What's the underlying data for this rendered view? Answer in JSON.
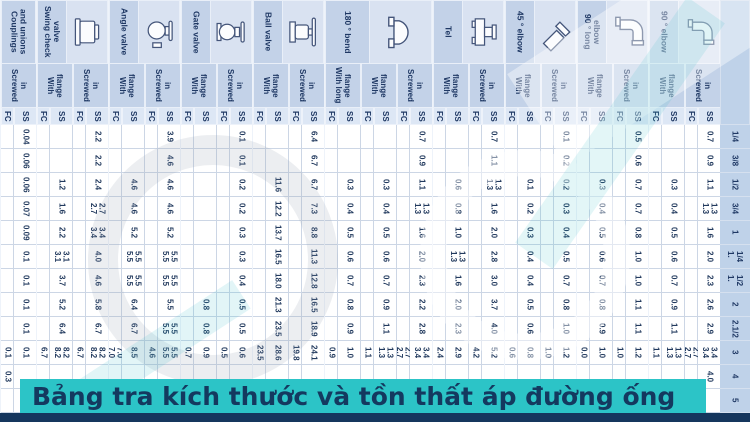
{
  "banner": {
    "text": "Bảng tra kích thước và tồn thất áp đường ống"
  },
  "colors": {
    "banner_bg": "#2cc4c7",
    "banner_text": "#14395f",
    "bottom_strip": "#15365d",
    "header_blue": "#c3d2e8",
    "size_column_blue": "#bfd2e9"
  },
  "col_labels": {
    "fc": "FC",
    "ss": "SS"
  },
  "sizes": [
    "1/4",
    "3/8",
    "1/2",
    "3/4",
    "1",
    "1.\n1/4",
    "1.\n1/2",
    "2",
    "2.1/2",
    "3",
    "4",
    "5"
  ],
  "groups": [
    {
      "name": "Couplings\nand unions",
      "icon": "",
      "subs": [
        {
          "label": "Screwed\nin",
          "fc": [
            "",
            "",
            "",
            "",
            "",
            "",
            "",
            "",
            "",
            "0.1",
            "0.3",
            ""
          ],
          "ss": [
            "0.04",
            "0.06",
            "0.06",
            "0.07",
            "0.09",
            "0.1",
            "0.1",
            "0.1",
            "0.1",
            "0.1",
            "",
            ""
          ]
        }
      ]
    },
    {
      "name": "Swing check\nvalve",
      "icon": "swing-check-valve",
      "subs": [
        {
          "label": "With\nflange",
          "fc": [
            "",
            "",
            "",
            "",
            "",
            "",
            "",
            "",
            "",
            "6.7",
            "",
            ""
          ],
          "ss": [
            "",
            "",
            "1.2",
            "1.6",
            "2.2",
            "3.1\n3.1",
            "3.7",
            "5.2",
            "6.4",
            "8.2\n8.2",
            "",
            ""
          ]
        },
        {
          "label": "Screwed\nin",
          "fc": [
            "",
            "",
            "",
            "",
            "",
            "",
            "",
            "",
            "",
            "6.7",
            "",
            ""
          ],
          "ss": [
            "2.2",
            "2.2",
            "2.4",
            "2.7\n2.7",
            "3.4\n3.4",
            "4.0",
            "4.6",
            "5.8",
            "6.7",
            "8.2\n8.2",
            "",
            ""
          ]
        }
      ]
    },
    {
      "name": "Angle valve",
      "icon": "angle-valve",
      "subs": [
        {
          "label": "With\nflange",
          "fc": [
            "",
            "",
            "",
            "",
            "",
            "",
            "",
            "",
            "",
            "7.0\n7.0",
            "",
            ""
          ],
          "ss": [
            "",
            "",
            "4.6",
            "4.6",
            "5.2",
            "5.5\n5.5",
            "5.5\n5.5",
            "6.4",
            "6.7",
            "8.5",
            "",
            ""
          ]
        },
        {
          "label": "Screwed\nin",
          "fc": [
            "",
            "",
            "",
            "",
            "",
            "",
            "",
            "",
            "",
            "4.6",
            "",
            ""
          ],
          "ss": [
            "3.9",
            "4.6",
            "4.6",
            "4.6",
            "5.2",
            "5.5\n5.5",
            "5.5\n5.5",
            "5.5",
            "5.5\n5.5",
            "5.5\n5.5",
            "",
            ""
          ]
        }
      ]
    },
    {
      "name": "Gate valve",
      "icon": "gate-valve",
      "subs": [
        {
          "label": "With\nflange",
          "fc": [
            "",
            "",
            "",
            "",
            "",
            "",
            "",
            "",
            "",
            "0.7",
            "",
            ""
          ],
          "ss": [
            "",
            "",
            "",
            "",
            "",
            "",
            "",
            "0.8",
            "0.8",
            "0.9",
            "",
            ""
          ]
        },
        {
          "label": "Screwed\nin",
          "fc": [
            "",
            "",
            "",
            "",
            "",
            "",
            "",
            "",
            "",
            "0.5",
            "",
            ""
          ],
          "ss": [
            "0.1",
            "0.1",
            "0.2",
            "0.2",
            "0.3",
            "0.3",
            "0.4",
            "0.5",
            "0.5",
            "0.6",
            "",
            ""
          ]
        }
      ]
    },
    {
      "name": "Ball valve",
      "icon": "ball-valve",
      "subs": [
        {
          "label": "With\nflange",
          "fc": [
            "",
            "",
            "",
            "",
            "",
            "",
            "",
            "",
            "",
            "23.5",
            "",
            ""
          ],
          "ss": [
            "",
            "",
            "11.6",
            "12.2",
            "13.7",
            "16.5",
            "18.0",
            "21.3",
            "23.5",
            "28.6",
            "",
            ""
          ]
        },
        {
          "label": "Screwed\nin",
          "fc": [
            "",
            "",
            "",
            "",
            "",
            "",
            "",
            "",
            "",
            "19.8",
            "",
            ""
          ],
          "ss": [
            "6.4",
            "6.7",
            "6.7",
            "7.3",
            "8.8",
            "11.3",
            "12.8",
            "16.5",
            "18.9",
            "24.1",
            "",
            ""
          ]
        }
      ]
    },
    {
      "name": "180 ° bend",
      "icon": "bend-180",
      "subs": [
        {
          "label": "With long\nflange",
          "fc": [
            "",
            "",
            "",
            "",
            "",
            "",
            "",
            "",
            "",
            "0.9",
            "",
            ""
          ],
          "ss": [
            "",
            "",
            "0.3",
            "0.4",
            "0.5",
            "0.6",
            "0.7",
            "0.8",
            "0.9",
            "1.0",
            "",
            ""
          ]
        },
        {
          "label": "With\nflange",
          "fc": [
            "",
            "",
            "",
            "",
            "",
            "",
            "",
            "",
            "",
            "1.1",
            "",
            ""
          ],
          "ss": [
            "",
            "",
            "0.3",
            "0.4",
            "0.5",
            "0.6",
            "0.7",
            "0.9",
            "1.1",
            "1.3\n1.3",
            "",
            ""
          ]
        },
        {
          "label": "Screwed\nin",
          "fc": [
            "",
            "",
            "",
            "",
            "",
            "",
            "",
            "",
            "",
            "2.7\n2.7",
            "",
            ""
          ],
          "ss": [
            "0.7",
            "0.9",
            "1.1",
            "1.3\n1.3",
            "1.6",
            "2.0",
            "2.3",
            "2.2",
            "2.8",
            "3.4\n3.4",
            "",
            ""
          ]
        }
      ]
    },
    {
      "name": "Tel",
      "icon": "tee",
      "subs": [
        {
          "label": "With\nflange",
          "fc": [
            "",
            "",
            "",
            "",
            "",
            "",
            "",
            "",
            "",
            "2.4",
            "",
            ""
          ],
          "ss": [
            "",
            "",
            "0.6",
            "0.8",
            "1.0",
            "1.3\n1.3",
            "1.6",
            "2.0",
            "2.3",
            "2.9",
            "",
            ""
          ]
        },
        {
          "label": "Screwed\nin",
          "fc": [
            "",
            "",
            "",
            "",
            "",
            "",
            "",
            "",
            "",
            "4.2",
            "",
            ""
          ],
          "ss": [
            "0.7",
            "1.1",
            "1.3\n1.3",
            "1.6",
            "2.0",
            "2.8",
            "3.0",
            "3.7",
            "4.0",
            "5.2",
            "",
            ""
          ]
        }
      ]
    },
    {
      "name": "45 ° elbow",
      "icon": "elbow-45",
      "subs": [
        {
          "label": "With\nflange",
          "fc": [
            "",
            "",
            "",
            "",
            "",
            "",
            "",
            "",
            "",
            "0.6",
            "",
            ""
          ],
          "ss": [
            "",
            "",
            "0.1",
            "0.2",
            "0.3",
            "0.4",
            "0.4",
            "0.5",
            "0.6",
            "0.8",
            "",
            ""
          ]
        },
        {
          "label": "Screwed\nin",
          "fc": [
            "",
            "",
            "",
            "",
            "",
            "",
            "",
            "",
            "",
            "1.0",
            "",
            ""
          ],
          "ss": [
            "0.1",
            "0.2",
            "0.2",
            "0.3",
            "0.4",
            "0.5",
            "0.7",
            "0.8",
            "1.0",
            "1.2",
            "",
            ""
          ]
        }
      ]
    },
    {
      "name": "90 ° long\nelbow",
      "icon": "elbow-90-long",
      "subs": [
        {
          "label": "With\nflange",
          "fc": [
            "",
            "",
            "",
            "",
            "",
            "",
            "",
            "",
            "",
            "0.0",
            "",
            ""
          ],
          "ss": [
            "",
            "",
            "0.3",
            "0.4",
            "0.5",
            "0.6",
            "0.7",
            "0.8",
            "0.9",
            "1.0",
            "",
            ""
          ]
        },
        {
          "label": "Screwed\nin",
          "fc": [
            "",
            "",
            "",
            "",
            "",
            "",
            "",
            "",
            "",
            "1.0",
            "",
            ""
          ],
          "ss": [
            "0.5",
            "0.6",
            "0.7",
            "0.7",
            "0.8",
            "1.0",
            "1.0",
            "1.1",
            "1.1",
            "1.2",
            "",
            ""
          ]
        }
      ]
    },
    {
      "name": "90 ° elbow",
      "icon": "elbow-90",
      "subs": [
        {
          "label": "With\nflange",
          "fc": [
            "",
            "",
            "",
            "",
            "",
            "",
            "",
            "",
            "",
            "1.1",
            "",
            ""
          ],
          "ss": [
            "",
            "",
            "0.3",
            "0.4",
            "0.5",
            "0.6",
            "0.7",
            "0.9",
            "1.1",
            "1.3\n1.3",
            "",
            ""
          ]
        },
        {
          "label": "Screwed\nin",
          "fc": [
            "",
            "",
            "",
            "",
            "",
            "",
            "",
            "",
            "",
            "2.7\n2.7",
            "",
            ""
          ],
          "ss": [
            "0.7",
            "0.9",
            "1.1",
            "1.3\n1.3",
            "1.6",
            "2.0",
            "2.3",
            "2.6",
            "2.9",
            "3.4\n3.4",
            "4.0",
            ""
          ]
        }
      ]
    }
  ]
}
